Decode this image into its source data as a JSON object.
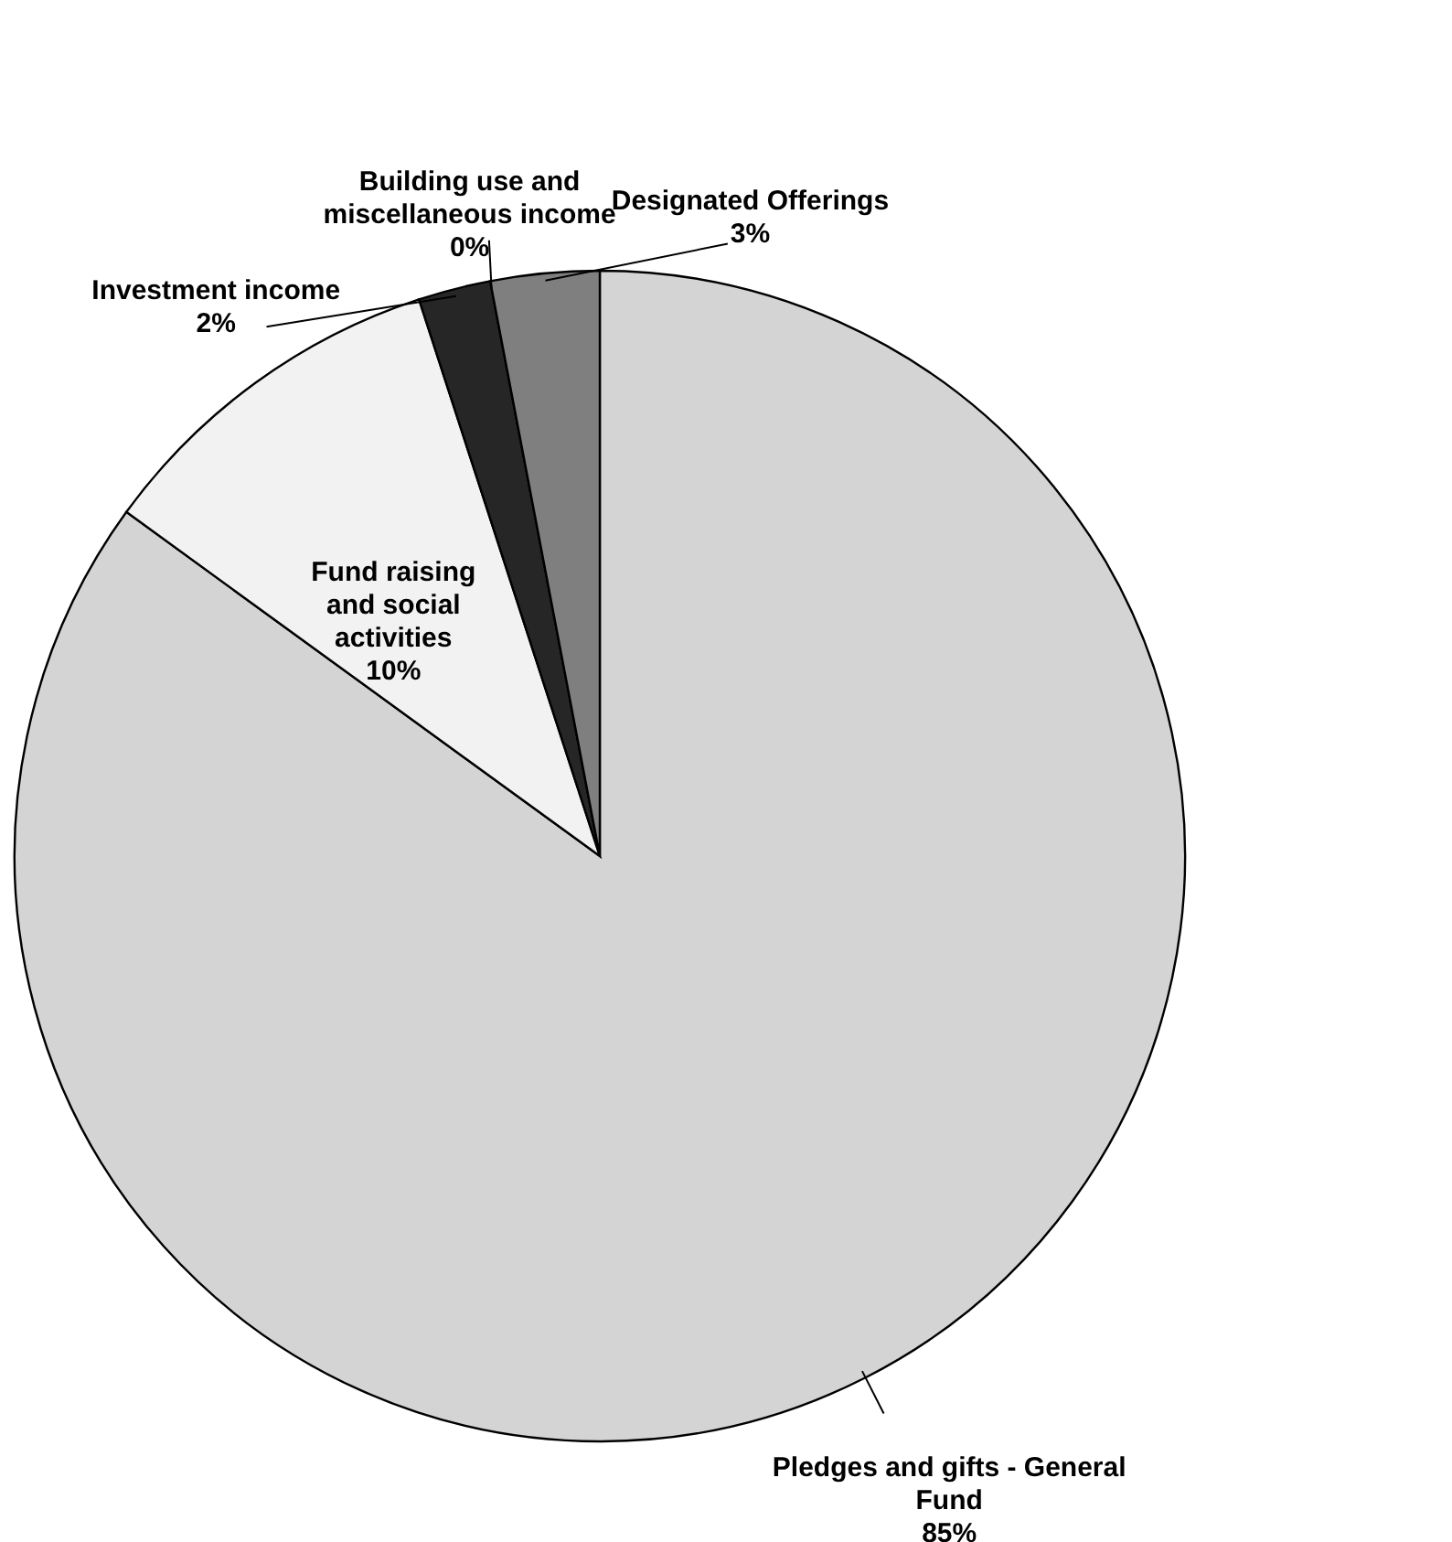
{
  "chart_data": {
    "type": "pie",
    "categories": [
      "Pledges and gifts - General Fund",
      "Fund raising and social activities",
      "Investment income",
      "Building use and miscellaneous income",
      "Designated Offerings"
    ],
    "values": [
      85,
      10,
      2,
      0,
      3
    ],
    "value_labels": [
      "85%",
      "10%",
      "2%",
      "0%",
      "3%"
    ],
    "colors": [
      "#d4d4d4",
      "#f2f2f2",
      "#262626",
      "#ffffff",
      "#7f7f7f"
    ]
  }
}
